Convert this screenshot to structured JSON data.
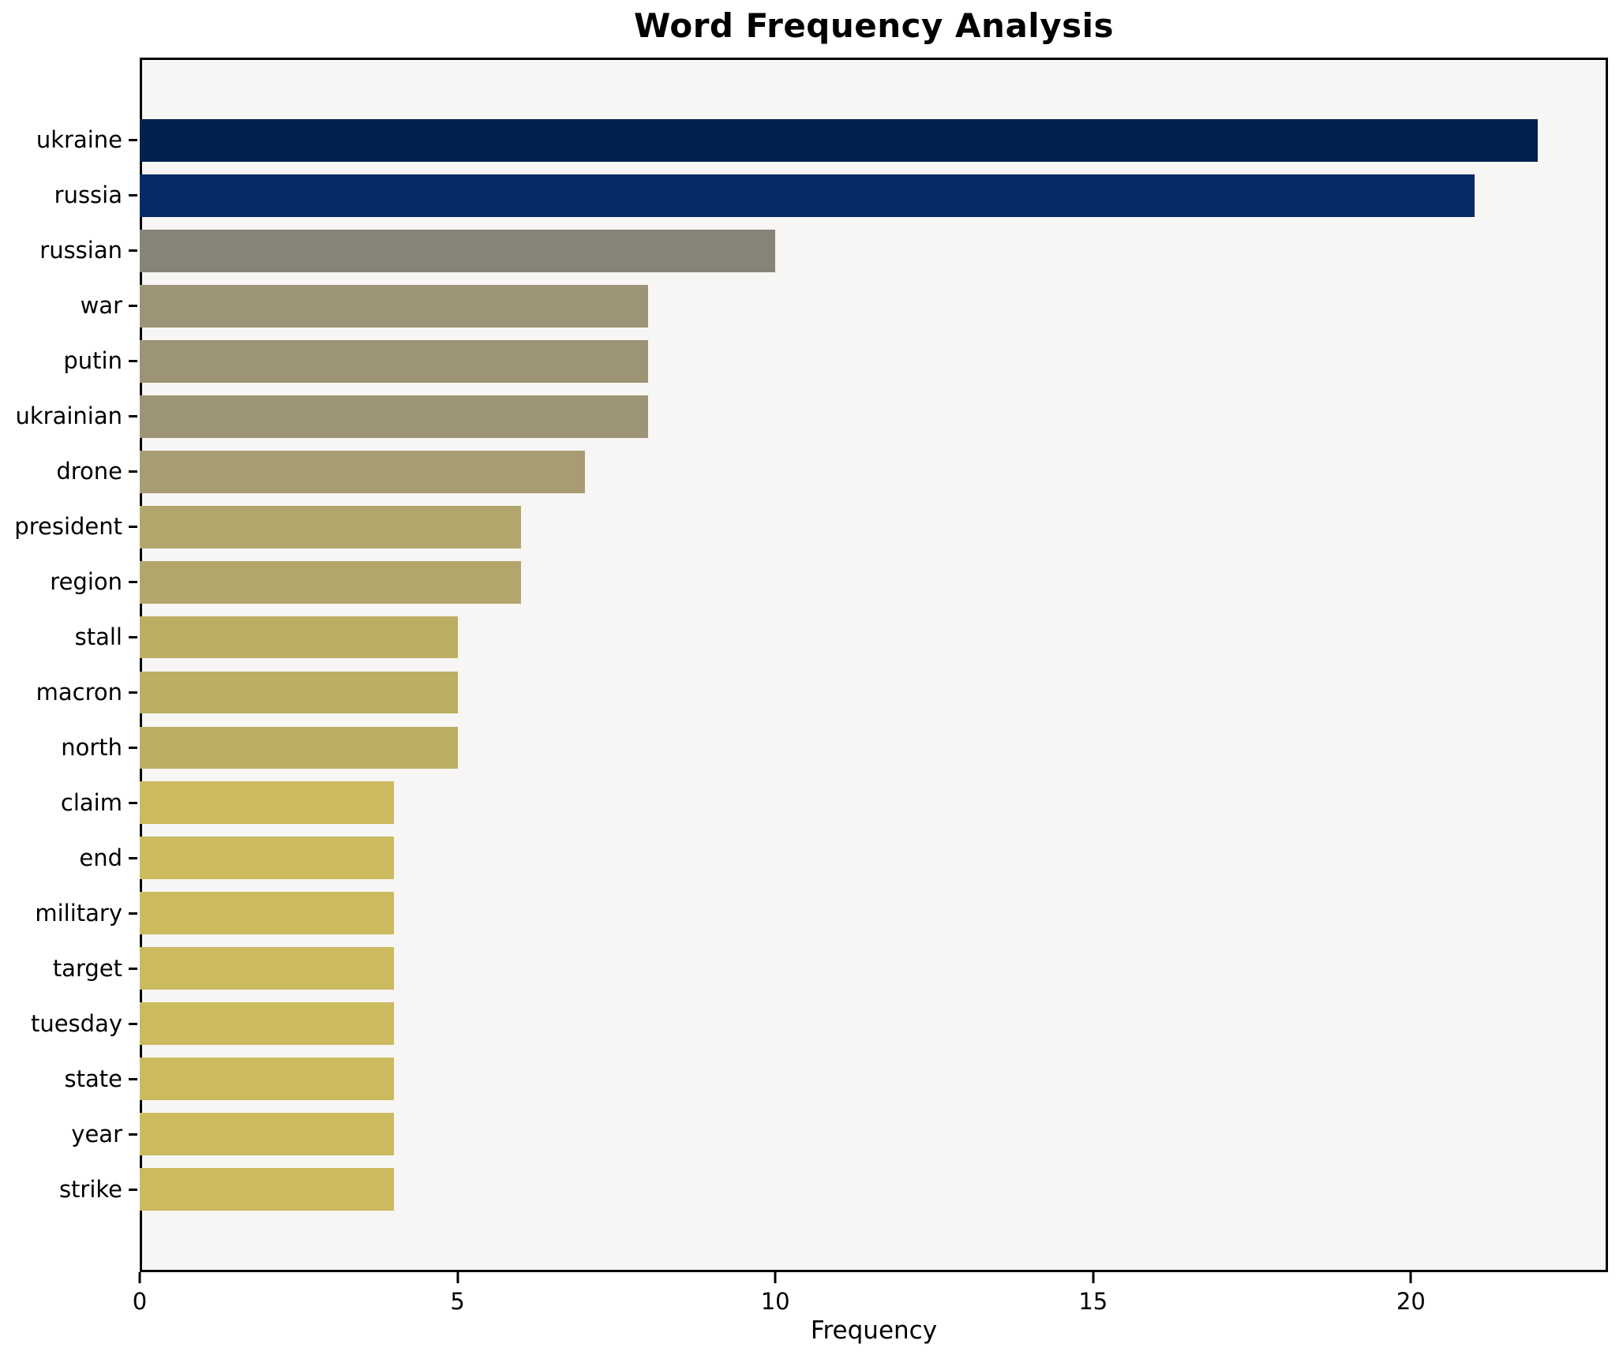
{
  "chart_data": {
    "type": "bar",
    "orientation": "horizontal",
    "title": "Word Frequency Analysis",
    "xlabel": "Frequency",
    "categories": [
      "ukraine",
      "russia",
      "russian",
      "war",
      "putin",
      "ukrainian",
      "drone",
      "president",
      "region",
      "stall",
      "macron",
      "north",
      "claim",
      "end",
      "military",
      "target",
      "tuesday",
      "state",
      "year",
      "strike"
    ],
    "values": [
      22,
      21,
      10,
      8,
      8,
      8,
      7,
      6,
      6,
      5,
      5,
      5,
      4,
      4,
      4,
      4,
      4,
      4,
      4,
      4
    ],
    "bar_colors": [
      "#01224e",
      "#042b66",
      "#868378",
      "#9d9477",
      "#9d9477",
      "#9d9477",
      "#a89d72",
      "#b2a66c",
      "#b2a66c",
      "#bcae63",
      "#bcae63",
      "#bcae63",
      "#cbba5e",
      "#cbba5e",
      "#cbba5e",
      "#cbba5e",
      "#cbba5e",
      "#cbba5e",
      "#cbba5e",
      "#cbba5e"
    ],
    "xlim": [
      0,
      23.1
    ],
    "xticks": [
      0,
      5,
      10,
      15,
      20
    ],
    "grid": false,
    "legend_position": "none",
    "plot_background": "#f7f6f4",
    "figure_background": "#ffffff",
    "spine_color": "#000000",
    "text_color": "#000000"
  }
}
